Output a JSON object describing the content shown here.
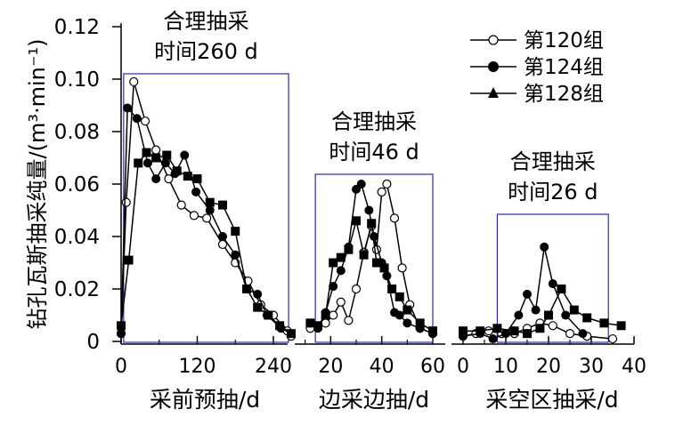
{
  "chart_data": {
    "type": "line",
    "ylabel": "钻孔瓦斯抽采纯量/(m³·min⁻¹)",
    "ylim": [
      0,
      0.12
    ],
    "yticks": [
      "0",
      "0.02",
      "0.04",
      "0.06",
      "0.08",
      "0.10",
      "0.12"
    ],
    "legend_position": "top-right",
    "legend": [
      {
        "name": "第120组",
        "marker": "open-circle"
      },
      {
        "name": "第124组",
        "marker": "filled-circle"
      },
      {
        "name": "第128组",
        "marker": "filled-triangle"
      }
    ],
    "panels": [
      {
        "xlabel": "采前预抽/d",
        "xlim": [
          0,
          270
        ],
        "xticks": [
          "0",
          "120",
          "240"
        ],
        "annotation": {
          "line1": "合理抽采",
          "line2": "时间260 d"
        },
        "box_x": [
          4,
          264
        ],
        "series": [
          {
            "name": "第120组",
            "x": [
              0,
              8,
              20,
              38,
              55,
              75,
              95,
              115,
              135,
              160,
              180,
              200,
              220,
              240,
              262,
              268
            ],
            "y": [
              0.003,
              0.053,
              0.099,
              0.084,
              0.073,
              0.062,
              0.052,
              0.048,
              0.047,
              0.037,
              0.03,
              0.023,
              0.014,
              0.01,
              0.004,
              0.002
            ]
          },
          {
            "name": "第124组",
            "x": [
              0,
              10,
              25,
              42,
              55,
              70,
              85,
              100,
              118,
              140,
              160,
              180,
              198,
              215,
              230,
              252,
              268
            ],
            "y": [
              0.003,
              0.089,
              0.085,
              0.068,
              0.062,
              0.068,
              0.064,
              0.071,
              0.057,
              0.05,
              0.04,
              0.033,
              0.02,
              0.018,
              0.01,
              0.005,
              0.003
            ]
          },
          {
            "name": "第128组",
            "x": [
              0,
              12,
              27,
              40,
              55,
              72,
              88,
              105,
              120,
              140,
              160,
              180,
              198,
              215,
              232,
              250,
              268
            ],
            "y": [
              0.006,
              0.031,
              0.068,
              0.072,
              0.07,
              0.071,
              0.065,
              0.063,
              0.062,
              0.053,
              0.052,
              0.042,
              0.02,
              0.013,
              0.01,
              0.006,
              0.003
            ]
          }
        ]
      },
      {
        "xlabel": "边采边抽/d",
        "xlim": [
          0,
          62
        ],
        "xticks": [
          "20",
          "40",
          "60"
        ],
        "annotation": {
          "line1": "合理抽采",
          "line2": "时间46 d"
        },
        "box_x": [
          14,
          60
        ],
        "series": [
          {
            "name": "第120组",
            "x": [
              12,
              18,
              21,
              24,
              27,
              30,
              33,
              36,
              38,
              40,
              42,
              45,
              48,
              51,
              55,
              60
            ],
            "y": [
              0.005,
              0.007,
              0.01,
              0.015,
              0.008,
              0.02,
              0.034,
              0.044,
              0.035,
              0.057,
              0.06,
              0.047,
              0.028,
              0.014,
              0.005,
              0.003
            ]
          },
          {
            "name": "第124组",
            "x": [
              12,
              15,
              18,
              21,
              24,
              27,
              30,
              32,
              35,
              37,
              40,
              42,
              45,
              47,
              50,
              55,
              60
            ],
            "y": [
              0.007,
              0.005,
              0.011,
              0.021,
              0.027,
              0.036,
              0.058,
              0.06,
              0.05,
              0.04,
              0.03,
              0.025,
              0.011,
              0.01,
              0.007,
              0.005,
              0.003
            ]
          },
          {
            "name": "第128组",
            "x": [
              12,
              15,
              18,
              21,
              24,
              27,
              30,
              33,
              36,
              38,
              41,
              44,
              47,
              50,
              55,
              60
            ],
            "y": [
              0.007,
              0.006,
              0.01,
              0.03,
              0.032,
              0.035,
              0.046,
              0.033,
              0.045,
              0.03,
              0.028,
              0.02,
              0.017,
              0.012,
              0.007,
              0.004
            ]
          }
        ]
      },
      {
        "xlabel": "采空区抽采/d",
        "xlim": [
          0,
          40
        ],
        "xticks": [
          "0",
          "10",
          "20",
          "30",
          "40"
        ],
        "annotation": {
          "line1": "合理抽采",
          "line2": "时间26 d"
        },
        "box_x": [
          8,
          34
        ],
        "series": [
          {
            "name": "第120组",
            "x": [
              0,
              3,
              6,
              9,
              12,
              15,
              18,
              21,
              25,
              29,
              35
            ],
            "y": [
              0.002,
              0.003,
              0.004,
              0.003,
              0.003,
              0.005,
              0.007,
              0.006,
              0.003,
              0.002,
              0.001
            ]
          },
          {
            "name": "第124组",
            "x": [
              0,
              4,
              7,
              10,
              13,
              15,
              17,
              19,
              21,
              24,
              28
            ],
            "y": [
              0.002,
              0.003,
              0.001,
              0.003,
              0.01,
              0.018,
              0.012,
              0.036,
              0.022,
              0.01,
              0.003
            ]
          },
          {
            "name": "第128组",
            "x": [
              0,
              4,
              8,
              12,
              15,
              18,
              20,
              23,
              26,
              29,
              33,
              37
            ],
            "y": [
              0.004,
              0.004,
              0.005,
              0.004,
              0.003,
              0.005,
              0.01,
              0.02,
              0.012,
              0.009,
              0.007,
              0.006
            ]
          }
        ]
      }
    ]
  }
}
